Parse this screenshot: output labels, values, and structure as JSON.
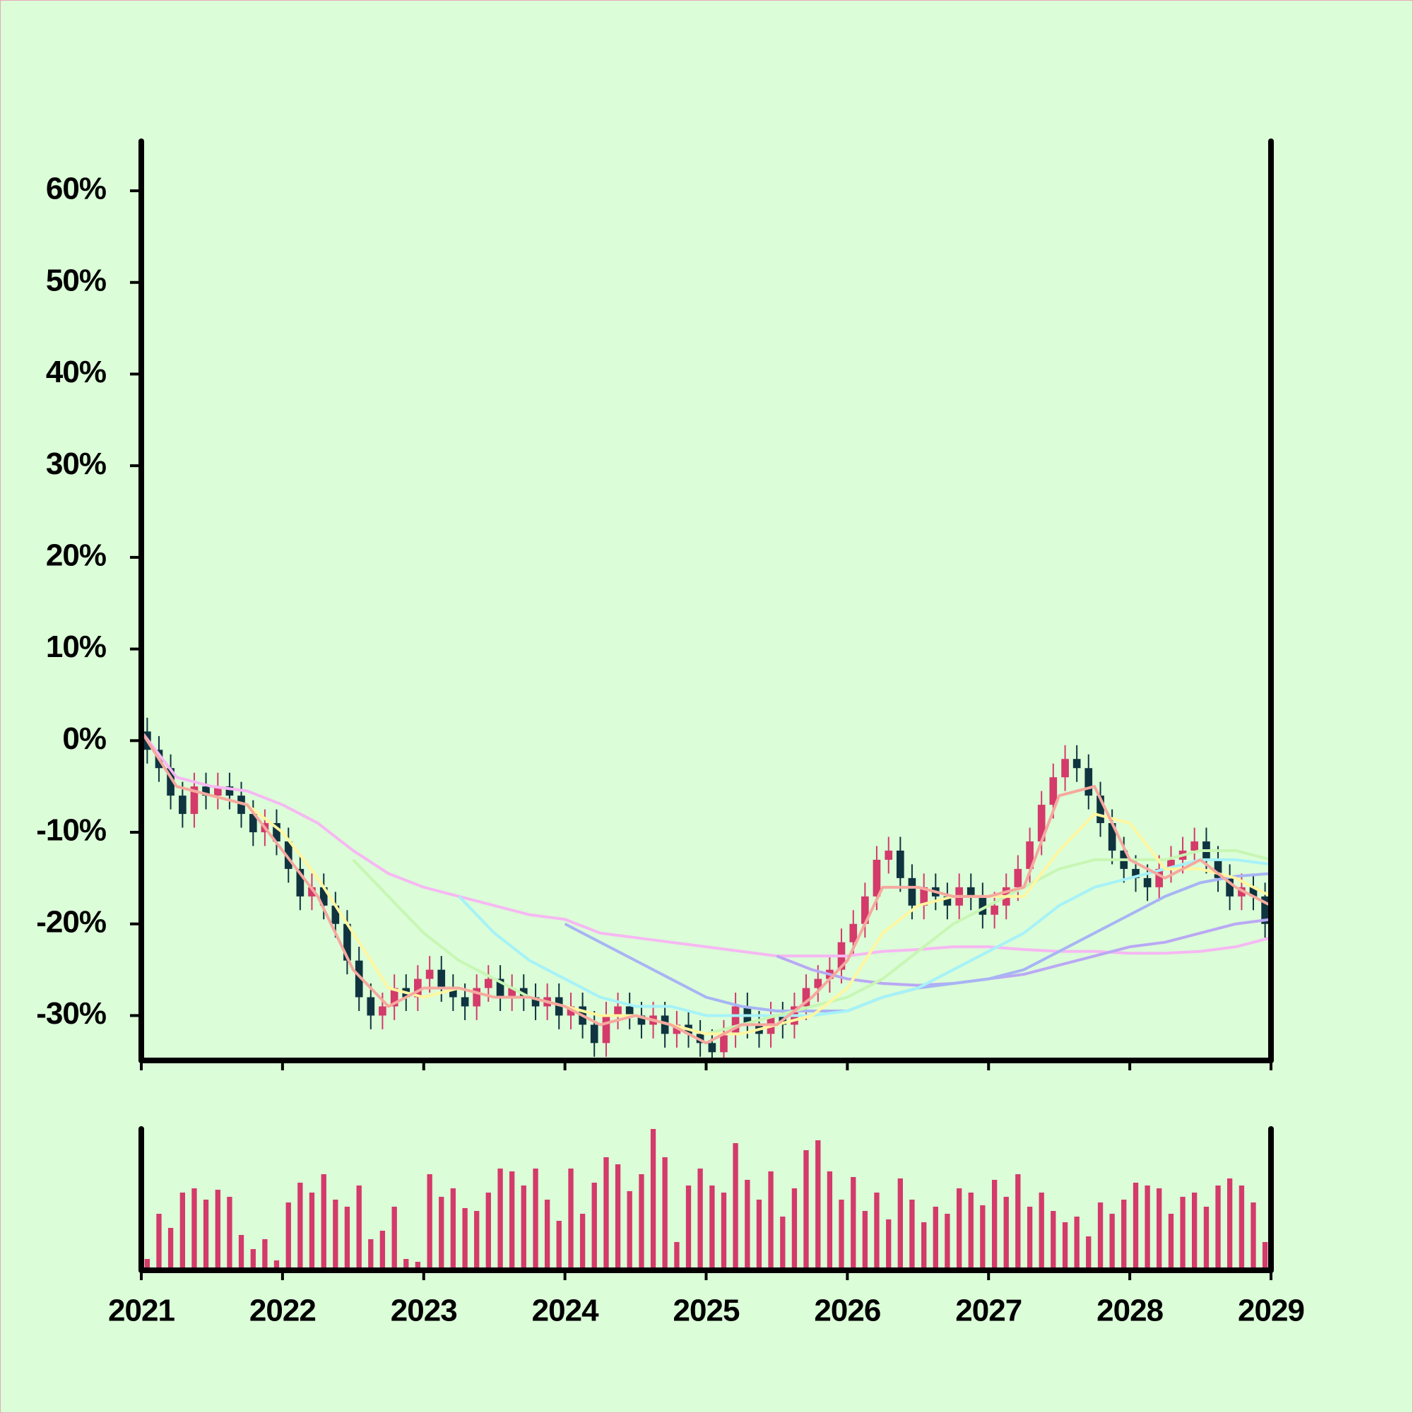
{
  "chart_data": {
    "type": "candlestick",
    "up_color": "#d43a6a",
    "down_color": "#0f3440",
    "xlim": [
      2021,
      2029
    ],
    "xticks": [
      2021,
      2022,
      2023,
      2024,
      2025,
      2026,
      2027,
      2028,
      2029
    ],
    "ylim": [
      -34.9,
      65.4
    ],
    "yticks": [
      {
        "value": -30,
        "label": "-30%"
      },
      {
        "value": -20,
        "label": "-20%"
      },
      {
        "value": -10,
        "label": "-10%"
      },
      {
        "value": 0,
        "label": "0%"
      },
      {
        "value": 10,
        "label": "10%"
      },
      {
        "value": 20,
        "label": "20%"
      },
      {
        "value": 30,
        "label": "30%"
      },
      {
        "value": 40,
        "label": "40%"
      },
      {
        "value": 50,
        "label": "50%"
      },
      {
        "value": 60,
        "label": "60%"
      }
    ],
    "x": [
      2021.042,
      2021.125,
      2021.208,
      2021.292,
      2021.375,
      2021.458,
      2021.542,
      2021.625,
      2021.708,
      2021.792,
      2021.875,
      2021.958,
      2022.042,
      2022.125,
      2022.208,
      2022.292,
      2022.375,
      2022.458,
      2022.542,
      2022.625,
      2022.708,
      2022.792,
      2022.875,
      2022.958,
      2023.042,
      2023.125,
      2023.208,
      2023.292,
      2023.375,
      2023.458,
      2023.542,
      2023.625,
      2023.708,
      2023.792,
      2023.875,
      2023.958,
      2024.042,
      2024.125,
      2024.208,
      2024.292,
      2024.375,
      2024.458,
      2024.542,
      2024.625,
      2024.708,
      2024.792,
      2024.875,
      2024.958,
      2025.042,
      2025.125,
      2025.208,
      2025.292,
      2025.375,
      2025.458,
      2025.542,
      2025.625,
      2025.708,
      2025.792,
      2025.875,
      2025.958,
      2026.042,
      2026.125,
      2026.208,
      2026.292,
      2026.375,
      2026.458,
      2026.542,
      2026.625,
      2026.708,
      2026.792,
      2026.875,
      2026.958,
      2027.042,
      2027.125,
      2027.208,
      2027.292,
      2027.375,
      2027.458,
      2027.542,
      2027.625,
      2027.708,
      2027.792,
      2027.875,
      2027.958,
      2028.042,
      2028.125,
      2028.208,
      2028.292,
      2028.375,
      2028.458,
      2028.542,
      2028.625,
      2028.708,
      2028.792,
      2028.875,
      2028.958
    ],
    "open": [
      1,
      -1,
      -3,
      -6,
      -8,
      -5,
      -6,
      -5,
      -6,
      -8,
      -10,
      -9,
      -11,
      -14,
      -17,
      -16,
      -18,
      -20,
      -24,
      -28,
      -30,
      -29,
      -27,
      -28,
      -26,
      -25,
      -27,
      -28,
      -29,
      -27,
      -26,
      -28,
      -27,
      -28,
      -29,
      -28,
      -30,
      -29,
      -31,
      -33,
      -30,
      -29,
      -30,
      -31,
      -30,
      -32,
      -31,
      -32,
      -33,
      -34,
      -32,
      -29,
      -31,
      -32,
      -30,
      -31,
      -29,
      -27,
      -26,
      -25,
      -22,
      -20,
      -17,
      -13,
      -12,
      -15,
      -18,
      -16,
      -17,
      -18,
      -16,
      -17,
      -19,
      -18,
      -16,
      -14,
      -11,
      -7,
      -4,
      -2,
      -3,
      -6,
      -9,
      -12,
      -14,
      -15,
      -16,
      -14,
      -13,
      -12,
      -11,
      -13,
      -15,
      -17,
      -16,
      -17
    ],
    "close": [
      -1,
      -3,
      -6,
      -8,
      -5,
      -6,
      -5,
      -6,
      -8,
      -10,
      -9,
      -11,
      -14,
      -17,
      -16,
      -18,
      -20,
      -24,
      -28,
      -30,
      -29,
      -27,
      -28,
      -26,
      -25,
      -27,
      -28,
      -29,
      -27,
      -26,
      -28,
      -27,
      -28,
      -29,
      -28,
      -30,
      -29,
      -31,
      -33,
      -30,
      -29,
      -30,
      -31,
      -30,
      -32,
      -31,
      -32,
      -33,
      -34,
      -32,
      -29,
      -31,
      -32,
      -30,
      -31,
      -29,
      -27,
      -26,
      -25,
      -22,
      -20,
      -17,
      -13,
      -12,
      -15,
      -18,
      -16,
      -17,
      -18,
      -16,
      -17,
      -19,
      -18,
      -16,
      -14,
      -11,
      -7,
      -4,
      -2,
      -3,
      -6,
      -9,
      -12,
      -14,
      -15,
      -16,
      -14,
      -13,
      -12,
      -11,
      -13,
      -15,
      -17,
      -16,
      -17,
      -20
    ],
    "high": [
      2.5,
      0.5,
      -1.5,
      -4.5,
      -3.5,
      -3.5,
      -3.5,
      -3.5,
      -4.5,
      -6.5,
      -7.5,
      -7.5,
      -9.5,
      -12.5,
      -14.5,
      -14.5,
      -16.5,
      -18.5,
      -22.5,
      -26.5,
      -27.5,
      -25.5,
      -25.5,
      -24.5,
      -23.5,
      -23.5,
      -25.5,
      -26.5,
      -25.5,
      -24.5,
      -24.5,
      -25.5,
      -25.5,
      -26.5,
      -26.5,
      -26.5,
      -27.5,
      -27.5,
      -29.5,
      -28.5,
      -27.5,
      -27.5,
      -28.5,
      -28.5,
      -28.5,
      -29.5,
      -29.5,
      -30.5,
      -31.5,
      -30.5,
      -27.5,
      -27.5,
      -29.5,
      -28.5,
      -28.5,
      -27.5,
      -25.5,
      -24.5,
      -23.5,
      -20.5,
      -18.5,
      -15.5,
      -11.5,
      -10.5,
      -10.5,
      -13.5,
      -14.5,
      -14.5,
      -15.5,
      -14.5,
      -14.5,
      -15.5,
      -16.5,
      -14.5,
      -12.5,
      -9.5,
      -5.5,
      -2.5,
      -0.5,
      -0.5,
      -1.5,
      -4.5,
      -7.5,
      -10.5,
      -12.5,
      -13.5,
      -12.5,
      -11.5,
      -10.5,
      -9.5,
      -9.5,
      -11.5,
      -13.5,
      -14.5,
      -14.5,
      -15.5
    ],
    "low": [
      -2.5,
      -4.5,
      -7.5,
      -9.5,
      -9.5,
      -7.5,
      -7.5,
      -7.5,
      -9.5,
      -11.5,
      -11.5,
      -12.5,
      -15.5,
      -18.5,
      -18.5,
      -19.5,
      -21.5,
      -25.5,
      -29.5,
      -31.5,
      -31.5,
      -30.5,
      -29.5,
      -29.5,
      -27.5,
      -28.5,
      -29.5,
      -30.5,
      -30.5,
      -28.5,
      -29.5,
      -29.5,
      -29.5,
      -30.5,
      -30.5,
      -31.5,
      -31.5,
      -32.5,
      -34.5,
      -34.5,
      -31.5,
      -31.5,
      -32.5,
      -32.5,
      -33.5,
      -33.5,
      -33.5,
      -34.5,
      -35.5,
      -35.5,
      -33.5,
      -32.5,
      -33.5,
      -33.5,
      -32.5,
      -32.5,
      -30.5,
      -28.5,
      -27.5,
      -26.5,
      -23.5,
      -21.5,
      -18.5,
      -14.5,
      -16.5,
      -19.5,
      -19.5,
      -18.5,
      -19.5,
      -19.5,
      -18.5,
      -20.5,
      -20.5,
      -19.5,
      -17.5,
      -15.5,
      -12.5,
      -8.5,
      -5.5,
      -4.5,
      -7.5,
      -10.5,
      -13.5,
      -15.5,
      -16.5,
      -17.5,
      -17.5,
      -15.5,
      -14.5,
      -13.5,
      -14.5,
      -16.5,
      -18.5,
      -18.5,
      -18.5,
      -21.5
    ],
    "lines": [
      {
        "color": "#f6b8f2",
        "x": [
          2021,
          2021.25,
          2021.5,
          2021.75,
          2022,
          2022.25,
          2022.5,
          2022.75,
          2023,
          2023.25,
          2023.5,
          2023.75,
          2024,
          2024.25,
          2024.5,
          2024.75,
          2025,
          2025.25,
          2025.5,
          2025.75,
          2026,
          2026.25,
          2026.5,
          2026.75,
          2027,
          2027.25,
          2027.5,
          2027.75,
          2028,
          2028.25,
          2028.5,
          2028.75,
          2029
        ],
        "values": [
          1,
          -4,
          -5,
          -5.5,
          -7,
          -9,
          -12,
          -14.5,
          -16,
          -17,
          -18,
          -19,
          -19.5,
          -21,
          -21.5,
          -22,
          -22.5,
          -23,
          -23.5,
          -23.5,
          -23.5,
          -23,
          -22.8,
          -22.5,
          -22.5,
          -22.8,
          -23,
          -23,
          -23.2,
          -23.2,
          -23,
          -22.5,
          -21.5
        ]
      },
      {
        "color": "#baa8f4",
        "x": [
          2025.5,
          2025.75,
          2026,
          2026.25,
          2026.5,
          2026.75,
          2027,
          2027.25,
          2027.5,
          2027.75,
          2028,
          2028.25,
          2028.5,
          2028.75,
          2029
        ],
        "values": [
          -23.5,
          -25,
          -26,
          -26.5,
          -26.7,
          -26.5,
          -26,
          -25.5,
          -24.5,
          -23.5,
          -22.5,
          -22,
          -21,
          -20,
          -19.5
        ]
      },
      {
        "color": "#a8b4f4",
        "x": [
          2024,
          2024.25,
          2024.5,
          2024.75,
          2025,
          2025.25,
          2025.5,
          2025.75,
          2026,
          2026.25,
          2026.5,
          2026.75,
          2027,
          2027.25,
          2027.5,
          2027.75,
          2028,
          2028.25,
          2028.5,
          2028.75,
          2029
        ],
        "values": [
          -20,
          -22,
          -24,
          -26,
          -28,
          -29,
          -29.5,
          -29.5,
          -29.5,
          -28,
          -27,
          -26.5,
          -26,
          -25,
          -23,
          -21,
          -19,
          -17,
          -15.5,
          -14.8,
          -14.5
        ]
      },
      {
        "color": "#a6f2f8",
        "x": [
          2023.25,
          2023.5,
          2023.75,
          2024,
          2024.25,
          2024.5,
          2024.75,
          2025,
          2025.25,
          2025.5,
          2025.75,
          2026,
          2026.25,
          2026.5,
          2026.75,
          2027,
          2027.25,
          2027.5,
          2027.75,
          2028,
          2028.25,
          2028.5,
          2028.75,
          2029
        ],
        "values": [
          -17,
          -21,
          -24,
          -26,
          -28,
          -29,
          -29,
          -30,
          -30,
          -30,
          -30,
          -29.5,
          -28,
          -27,
          -25,
          -23,
          -21,
          -18,
          -16,
          -15,
          -14,
          -13,
          -13,
          -13.5
        ]
      },
      {
        "color": "#c8f6b4",
        "x": [
          2022.5,
          2022.75,
          2023,
          2023.25,
          2023.5,
          2023.75,
          2024,
          2024.25,
          2024.5,
          2024.75,
          2025,
          2025.25,
          2025.5,
          2025.75,
          2026,
          2026.25,
          2026.5,
          2026.75,
          2027,
          2027.25,
          2027.5,
          2027.75,
          2028,
          2028.25,
          2028.5,
          2028.75,
          2029
        ],
        "values": [
          -13,
          -17,
          -21,
          -24,
          -26,
          -28,
          -29,
          -30,
          -30,
          -31,
          -32,
          -31,
          -30,
          -29,
          -28,
          -26,
          -23,
          -20,
          -18,
          -16,
          -14,
          -13,
          -13,
          -13,
          -12,
          -12,
          -13
        ]
      },
      {
        "color": "#fff6a0",
        "x": [
          2021.25,
          2021.5,
          2021.75,
          2022,
          2022.25,
          2022.5,
          2022.75,
          2023,
          2023.25,
          2023.5,
          2023.75,
          2024,
          2024.25,
          2024.5,
          2024.75,
          2025,
          2025.25,
          2025.5,
          2025.75,
          2026,
          2026.25,
          2026.5,
          2026.75,
          2027,
          2027.25,
          2027.5,
          2027.75,
          2028,
          2028.25,
          2028.5,
          2028.75,
          2029
        ],
        "values": [
          -5,
          -6,
          -7,
          -10,
          -15,
          -21,
          -27,
          -28,
          -27,
          -28,
          -28,
          -29,
          -30,
          -30,
          -31,
          -32,
          -32,
          -31,
          -30,
          -27,
          -21,
          -18,
          -17,
          -17,
          -17,
          -12,
          -8,
          -9,
          -14,
          -14,
          -15,
          -17
        ]
      },
      {
        "color": "#f6a89e",
        "x": [
          2021,
          2021.25,
          2021.5,
          2021.75,
          2022,
          2022.25,
          2022.5,
          2022.75,
          2023,
          2023.25,
          2023.5,
          2023.75,
          2024,
          2024.25,
          2024.5,
          2024.75,
          2025,
          2025.25,
          2025.5,
          2025.75,
          2026,
          2026.25,
          2026.5,
          2026.75,
          2027,
          2027.25,
          2027.5,
          2027.75,
          2028,
          2028.25,
          2028.5,
          2028.75,
          2029
        ],
        "values": [
          1,
          -5,
          -6,
          -7,
          -12,
          -17,
          -25,
          -29,
          -27,
          -27,
          -28,
          -28,
          -29,
          -31,
          -30,
          -31,
          -33,
          -31,
          -31,
          -28,
          -24,
          -16,
          -16,
          -17,
          -17,
          -16,
          -6,
          -5,
          -13,
          -15,
          -13,
          -16,
          -18
        ]
      }
    ],
    "volume": {
      "color": "#d43a6a",
      "ylim": [
        0,
        100
      ],
      "values": [
        8,
        40,
        30,
        55,
        58,
        50,
        57,
        52,
        25,
        15,
        22,
        7,
        48,
        62,
        55,
        68,
        50,
        45,
        60,
        22,
        28,
        45,
        8,
        6,
        68,
        52,
        58,
        44,
        42,
        55,
        72,
        70,
        60,
        72,
        50,
        35,
        72,
        40,
        62,
        80,
        75,
        56,
        68,
        100,
        80,
        20,
        60,
        72,
        60,
        55,
        90,
        64,
        50,
        70,
        38,
        58,
        85,
        92,
        70,
        50,
        66,
        42,
        55,
        36,
        65,
        50,
        34,
        45,
        40,
        58,
        55,
        46,
        64,
        52,
        68,
        45,
        55,
        42,
        34,
        38,
        24,
        48,
        40,
        50,
        62,
        60,
        58,
        40,
        52,
        55,
        45,
        60,
        65,
        60,
        48,
        20
      ]
    }
  }
}
